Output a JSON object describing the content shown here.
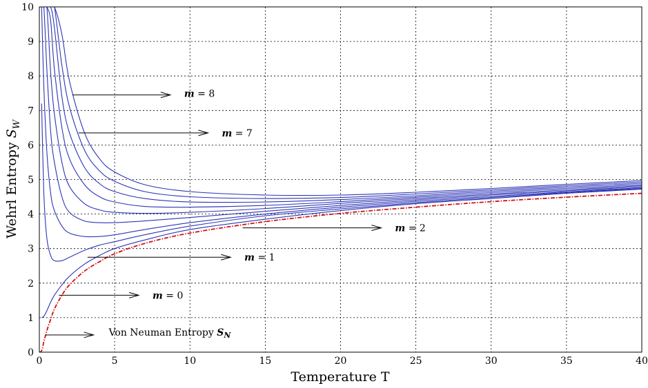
{
  "chart_data": {
    "type": "line",
    "title": "",
    "xlabel": "Temperature T",
    "ylabel": "Wehrl Entropy S_W",
    "ylabel_main": "Wehrl Entropy ",
    "ylabel_sym": "S",
    "ylabel_sub": "W",
    "xlim": [
      0,
      40
    ],
    "ylim": [
      0,
      10
    ],
    "xticks": [
      "0",
      "5",
      "10",
      "15",
      "20",
      "25",
      "30",
      "35",
      "40"
    ],
    "yticks": [
      "0",
      "1",
      "2",
      "3",
      "4",
      "5",
      "6",
      "7",
      "8",
      "9",
      "10"
    ],
    "grid": true,
    "x": [
      0.15,
      0.3,
      0.5,
      0.75,
      1,
      1.5,
      2,
      3,
      4,
      5,
      7,
      10,
      15,
      20,
      25,
      30,
      35,
      40
    ],
    "series": [
      {
        "values": [
          1.0,
          1.04,
          1.2,
          1.45,
          1.65,
          1.95,
          2.2,
          2.55,
          2.8,
          3.0,
          3.25,
          3.55,
          3.85,
          4.1,
          4.3,
          4.45,
          4.6,
          4.72
        ]
      },
      {
        "values": [
          7.2,
          4.6,
          3.3,
          2.8,
          2.65,
          2.65,
          2.75,
          2.95,
          3.1,
          3.2,
          3.4,
          3.65,
          3.95,
          4.15,
          4.33,
          4.48,
          4.62,
          4.74
        ]
      },
      {
        "values": [
          10.0,
          7.7,
          5.8,
          4.6,
          4.1,
          3.65,
          3.45,
          3.35,
          3.35,
          3.4,
          3.55,
          3.75,
          4.0,
          4.2,
          4.37,
          4.51,
          4.64,
          4.76
        ]
      },
      {
        "values": [
          10.0,
          10.0,
          8.2,
          6.4,
          5.5,
          4.5,
          4.05,
          3.8,
          3.75,
          3.75,
          3.8,
          3.9,
          4.08,
          4.25,
          4.41,
          4.55,
          4.67,
          4.79
        ]
      },
      {
        "values": [
          10.0,
          10.0,
          10.0,
          8.1,
          6.9,
          5.5,
          4.8,
          4.3,
          4.12,
          4.05,
          4.02,
          4.05,
          4.16,
          4.31,
          4.45,
          4.58,
          4.7,
          4.82
        ]
      },
      {
        "values": [
          10.0,
          10.0,
          10.0,
          9.6,
          8.2,
          6.5,
          5.6,
          4.85,
          4.5,
          4.35,
          4.22,
          4.2,
          4.25,
          4.36,
          4.49,
          4.62,
          4.74,
          4.85
        ]
      },
      {
        "values": [
          10.0,
          10.0,
          10.0,
          10.0,
          9.4,
          7.4,
          6.35,
          5.35,
          4.88,
          4.65,
          4.45,
          4.35,
          4.35,
          4.42,
          4.53,
          4.66,
          4.78,
          4.89
        ]
      },
      {
        "values": [
          10.0,
          10.0,
          10.0,
          10.0,
          10.0,
          8.3,
          7.1,
          5.85,
          5.25,
          4.95,
          4.65,
          4.5,
          4.45,
          4.48,
          4.58,
          4.7,
          4.82,
          4.93
        ]
      },
      {
        "values": [
          10.0,
          10.0,
          10.0,
          10.0,
          10.0,
          9.2,
          7.85,
          6.35,
          5.6,
          5.22,
          4.85,
          4.65,
          4.55,
          4.55,
          4.63,
          4.74,
          4.86,
          4.97
        ]
      }
    ],
    "von_neumann": {
      "x": [
        0,
        0.1,
        0.2,
        0.3,
        0.5,
        0.75,
        1,
        1.5,
        2,
        3,
        4,
        5,
        7,
        10,
        15,
        20,
        25,
        30,
        35,
        40
      ],
      "values": [
        0.0,
        0.01,
        0.1,
        0.3,
        0.62,
        0.95,
        1.25,
        1.65,
        1.95,
        2.35,
        2.62,
        2.85,
        3.15,
        3.45,
        3.78,
        4.02,
        4.2,
        4.36,
        4.49,
        4.6
      ]
    },
    "annotations": [
      {
        "sym": "m",
        "text": " = 8",
        "x_from": 2.2,
        "x_to": 8.7,
        "y": 7.45,
        "y_text": 7.5
      },
      {
        "sym": "m",
        "text": " = 7",
        "x_from": 2.6,
        "x_to": 11.2,
        "y": 6.35,
        "y_text": 6.35
      },
      {
        "sym": "m",
        "text": " = 2",
        "x_from": 13.5,
        "x_to": 22.7,
        "y": 3.6,
        "y_text": 3.6
      },
      {
        "sym": "m",
        "text": " = 1",
        "x_from": 3.2,
        "x_to": 12.7,
        "y": 2.75,
        "y_text": 2.75
      },
      {
        "sym": "m",
        "text": " = 0",
        "x_from": 1.3,
        "x_to": 6.6,
        "y": 1.65,
        "y_text": 1.65
      }
    ],
    "von_neumann_label": {
      "text": "Von Neuman Entropy ",
      "sym": "S",
      "sub": "N",
      "x_from": 0.4,
      "x_to": 3.6,
      "y": 0.5
    }
  }
}
